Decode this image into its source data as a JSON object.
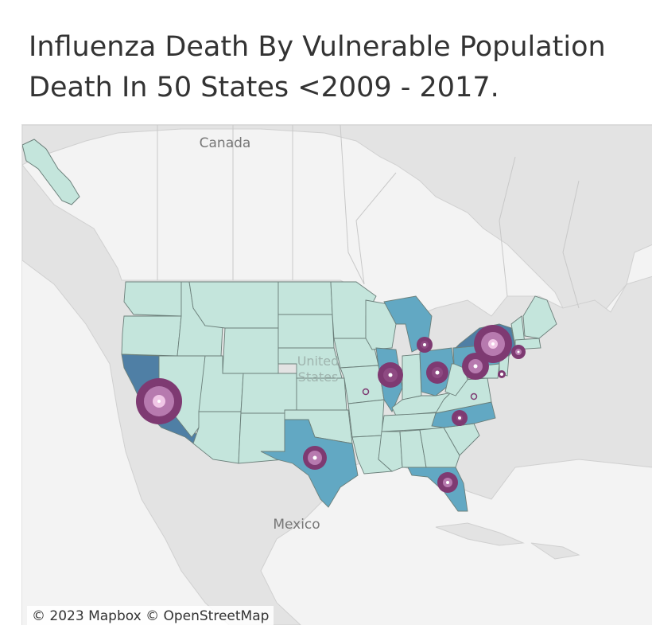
{
  "title": {
    "line1": "Influenza Death By Vulnerable Population",
    "line2": "Death In 50 States <2009 - 2017."
  },
  "map": {
    "labels": {
      "canada": "Canada",
      "united_states_line1": "United",
      "united_states_line2": "States",
      "mexico": "Mexico"
    },
    "attribution": "© 2023 Mapbox © OpenStreetMap",
    "colors": {
      "land": "#e2e2e2",
      "water": "#f6f6f6",
      "state_base": "#c4e5dc",
      "state_mid": "#62a8c3",
      "state_high": "#4f7fa5",
      "state_border": "#6b7f7a",
      "circle_outer": "#7e3a72",
      "circle_mid": "#b77aaf",
      "circle_inner": "#f0c6e6"
    },
    "highlighted_states": [
      {
        "state": "California",
        "shade": "high"
      },
      {
        "state": "Texas",
        "shade": "mid"
      },
      {
        "state": "Illinois",
        "shade": "mid"
      },
      {
        "state": "Michigan",
        "shade": "mid"
      },
      {
        "state": "Ohio",
        "shade": "mid"
      },
      {
        "state": "Pennsylvania",
        "shade": "mid"
      },
      {
        "state": "New York",
        "shade": "high"
      },
      {
        "state": "North Carolina",
        "shade": "mid"
      },
      {
        "state": "Florida",
        "shade": "mid"
      }
    ],
    "death_markers": [
      {
        "state": "California",
        "relative_size": 1.0
      },
      {
        "state": "New York",
        "relative_size": 0.8
      },
      {
        "state": "Pennsylvania",
        "relative_size": 0.6
      },
      {
        "state": "Illinois",
        "relative_size": 0.55
      },
      {
        "state": "Ohio",
        "relative_size": 0.5
      },
      {
        "state": "Texas",
        "relative_size": 0.5
      },
      {
        "state": "Florida",
        "relative_size": 0.45
      },
      {
        "state": "Michigan",
        "relative_size": 0.35
      },
      {
        "state": "North Carolina",
        "relative_size": 0.35
      },
      {
        "state": "Massachusetts",
        "relative_size": 0.3
      },
      {
        "state": "New Jersey",
        "relative_size": 0.15
      },
      {
        "state": "Missouri",
        "relative_size": 0.1
      },
      {
        "state": "Virginia",
        "relative_size": 0.1
      }
    ]
  }
}
